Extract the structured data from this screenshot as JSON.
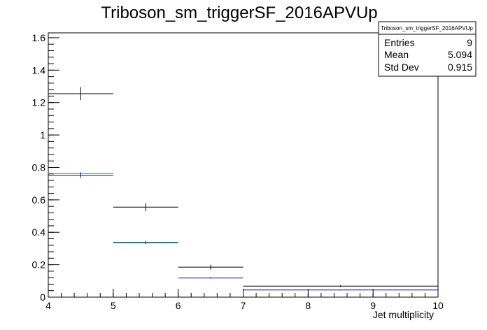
{
  "chart_data": {
    "type": "histogram",
    "title": "Triboson_sm_triggerSF_2016APVUp",
    "xlabel": "Jet multiplicity",
    "ylabel": "",
    "xlim": [
      4,
      10
    ],
    "ylim": [
      0,
      1.63
    ],
    "x_ticks": [
      4,
      5,
      6,
      7,
      8,
      9,
      10
    ],
    "x_tick_labels": [
      "4",
      "5",
      "6",
      "7",
      "8",
      "9",
      "10"
    ],
    "y_ticks": [
      0,
      0.2,
      0.4,
      0.6,
      0.8,
      1.0,
      1.2,
      1.4,
      1.6
    ],
    "y_tick_labels": [
      "0",
      "0.2",
      "0.4",
      "0.6",
      "0.8",
      "1",
      "1.2",
      "1.4",
      "1.6"
    ],
    "series": [
      {
        "color": "#000000",
        "bins": [
          [
            4,
            5
          ],
          [
            5,
            6
          ],
          [
            6,
            7
          ],
          [
            7,
            10
          ]
        ],
        "values": [
          1.255,
          0.555,
          0.185,
          0.068
        ],
        "errors": [
          0.04,
          0.025,
          0.015,
          0.006
        ]
      },
      {
        "color": "#00cc00",
        "bins": [
          [
            4,
            5
          ],
          [
            5,
            6
          ]
        ],
        "values": [
          0.762,
          0.338
        ],
        "errors": [
          0,
          0
        ]
      },
      {
        "color": "#0000cc",
        "bins": [
          [
            4,
            5
          ],
          [
            5,
            6
          ],
          [
            6,
            7
          ],
          [
            7,
            10
          ]
        ],
        "values": [
          0.752,
          0.336,
          0.118,
          0.044
        ],
        "errors": [
          0.018,
          0.008,
          0.004,
          0.002
        ]
      }
    ],
    "stats_box": {
      "title": "Triboson_sm_triggerSF_2016APVUp",
      "rows": [
        {
          "label": "Entries",
          "value": "9"
        },
        {
          "label": "Mean",
          "value": "5.094"
        },
        {
          "label": "Std Dev",
          "value": "0.915"
        }
      ]
    }
  }
}
